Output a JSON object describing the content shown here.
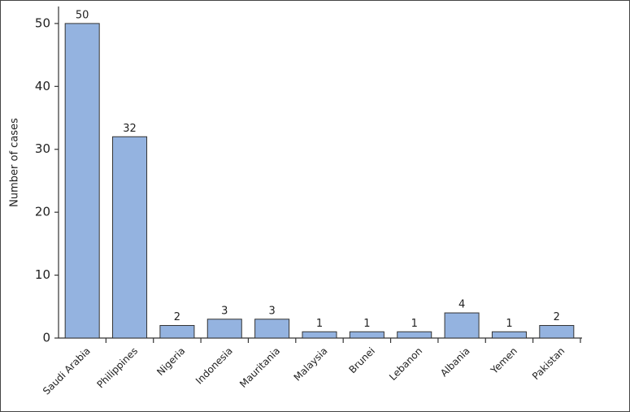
{
  "chart_data": {
    "type": "bar",
    "y_label": "Number of cases",
    "categories": [
      "Saudi Arabia",
      "Philippines",
      "Nigeria",
      "Indonesia",
      "Mauritania",
      "Malaysia",
      "Brunei",
      "Lebanon",
      "Albania",
      "Yemen",
      "Pakistan"
    ],
    "values": [
      50,
      32,
      2,
      3,
      3,
      1,
      1,
      1,
      4,
      1,
      2
    ],
    "color": "#94b3e0",
    "ylim": [
      0,
      52.7
    ],
    "yticks": [
      0,
      10,
      20,
      30,
      40,
      50
    ],
    "grid": false
  }
}
